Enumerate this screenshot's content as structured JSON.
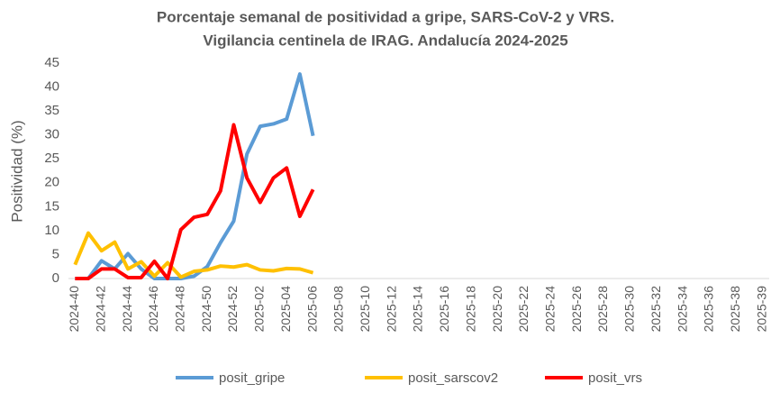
{
  "chart_data": {
    "type": "line",
    "title": [
      "Porcentaje semanal de positividad a gripe, SARS-CoV-2 y VRS.",
      "Vigilancia centinela de IRAG. Andalucía 2024-2025"
    ],
    "ylabel": "Positividad (%)",
    "categories": [
      "2024-40",
      null,
      "2024-42",
      null,
      "2024-44",
      null,
      "2024-46",
      null,
      "2024-48",
      null,
      "2024-50",
      null,
      "2024-52",
      null,
      "2025-02",
      null,
      "2025-04",
      null,
      "2025-06",
      null,
      "2025-08",
      null,
      "2025-10",
      null,
      "2025-12",
      null,
      "2025-14",
      null,
      "2025-16",
      null,
      "2025-18",
      null,
      "2025-20",
      null,
      "2025-22",
      null,
      "2025-24",
      null,
      "2025-26",
      null,
      "2025-28",
      null,
      "2025-30",
      null,
      "2025-32",
      null,
      "2025-34",
      null,
      "2025-36",
      null,
      "2025-38",
      null,
      "2025-39"
    ],
    "series": [
      {
        "name": "posit_gripe",
        "color": "#5b9bd5",
        "values": [
          0,
          0,
          3.7,
          2,
          5.2,
          2,
          0,
          0,
          0,
          0.5,
          2.5,
          7.5,
          12,
          26,
          31.8,
          32.3,
          33.3,
          42.7,
          29.8,
          null,
          null,
          null,
          null,
          null,
          null,
          null,
          null,
          null,
          null,
          null,
          null,
          null,
          null,
          null,
          null,
          null,
          null,
          null,
          null,
          null,
          null,
          null,
          null,
          null,
          null,
          null,
          null,
          null,
          null,
          null,
          null,
          null,
          null
        ]
      },
      {
        "name": "posit_sarscov2",
        "color": "#ffc000",
        "values": [
          2.9,
          9.5,
          5.8,
          7.6,
          2,
          3.5,
          0.5,
          3.3,
          0.3,
          1.5,
          1.8,
          2.6,
          2.4,
          2.9,
          1.8,
          1.6,
          2.1,
          2,
          1.2,
          null,
          null,
          null,
          null,
          null,
          null,
          null,
          null,
          null,
          null,
          null,
          null,
          null,
          null,
          null,
          null,
          null,
          null,
          null,
          null,
          null,
          null,
          null,
          null,
          null,
          null,
          null,
          null,
          null,
          null,
          null,
          null,
          null,
          null
        ]
      },
      {
        "name": "posit_vrs",
        "color": "#ff0000",
        "values": [
          0,
          0,
          2,
          2,
          0.2,
          0.2,
          3.6,
          0,
          10.2,
          12.8,
          13.4,
          18.3,
          32.1,
          21,
          15.9,
          21,
          23.1,
          13,
          18.6,
          null,
          null,
          null,
          null,
          null,
          null,
          null,
          null,
          null,
          null,
          null,
          null,
          null,
          null,
          null,
          null,
          null,
          null,
          null,
          null,
          null,
          null,
          null,
          null,
          null,
          null,
          null,
          null,
          null,
          null,
          null,
          null,
          null,
          null
        ]
      }
    ],
    "ylim": [
      0,
      45
    ],
    "yticks": [
      0,
      5,
      10,
      15,
      20,
      25,
      30,
      35,
      40,
      45
    ],
    "grid": false,
    "legend": "bottom"
  }
}
